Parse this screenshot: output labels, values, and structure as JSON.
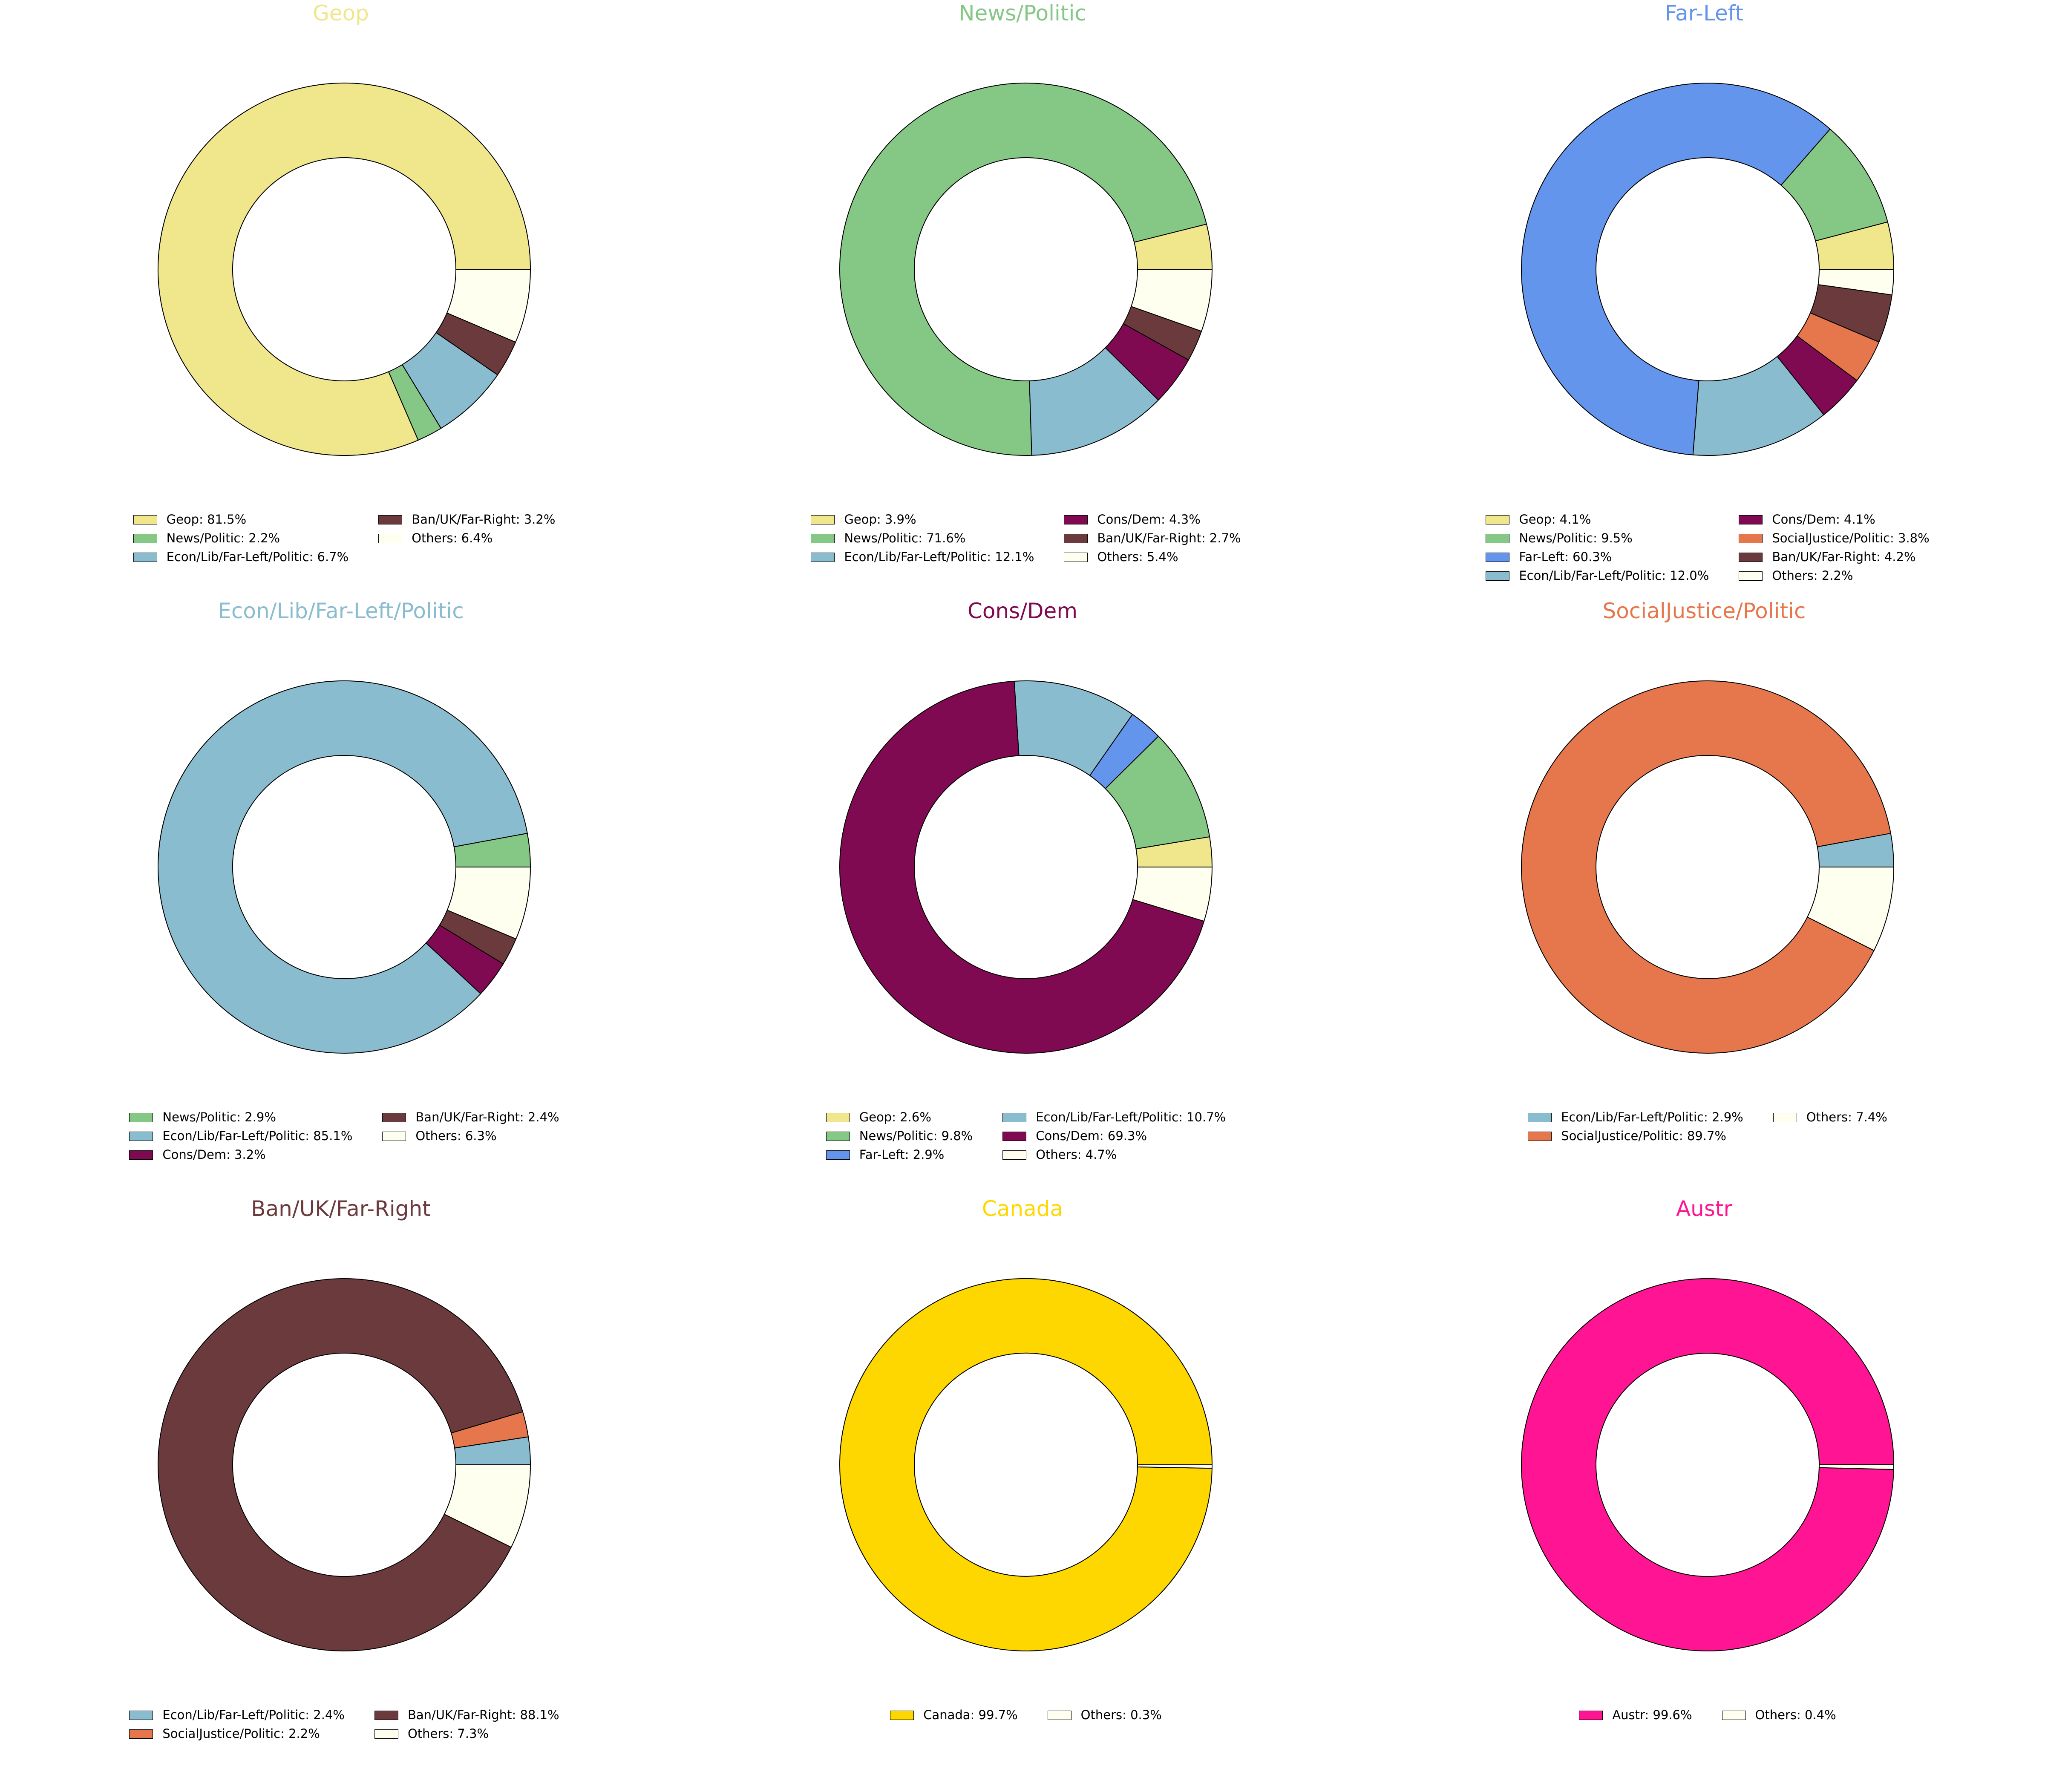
{
  "figure": {
    "type": "donut-grid",
    "rows": 3,
    "cols": 3,
    "legend_placement": "below each chart",
    "edge_color": "#000000"
  },
  "chart_data": [
    {
      "type": "pie",
      "style": "donut",
      "title": "Geop",
      "title_color": "#F0E68C",
      "slices": [
        {
          "label": "Geop: 81.5%",
          "value": 81.5,
          "color": "#F0E68C"
        },
        {
          "label": "News/Politic: 2.2%",
          "value": 2.2,
          "color": "#85C785"
        },
        {
          "label": "Econ/Lib/Far-Left/Politic: 6.7%",
          "value": 6.7,
          "color": "#8ABCCF"
        },
        {
          "label": "Ban/UK/Far-Right: 3.2%",
          "value": 3.2,
          "color": "#6B3A3D"
        },
        {
          "label": "Others: 6.4%",
          "value": 6.4,
          "color": "#FFFFF0"
        }
      ]
    },
    {
      "type": "pie",
      "style": "donut",
      "title": "News/Politic",
      "title_color": "#85C785",
      "slices": [
        {
          "label": "Geop: 3.9%",
          "value": 3.9,
          "color": "#F0E68C"
        },
        {
          "label": "News/Politic: 71.6%",
          "value": 71.6,
          "color": "#85C785"
        },
        {
          "label": "Econ/Lib/Far-Left/Politic: 12.1%",
          "value": 12.1,
          "color": "#8ABCCF"
        },
        {
          "label": "Cons/Dem: 4.3%",
          "value": 4.3,
          "color": "#800A52"
        },
        {
          "label": "Ban/UK/Far-Right: 2.7%",
          "value": 2.7,
          "color": "#6B3A3D"
        },
        {
          "label": "Others: 5.4%",
          "value": 5.4,
          "color": "#FFFFF0"
        }
      ]
    },
    {
      "type": "pie",
      "style": "donut",
      "title": "Far-Left",
      "title_color": "#6495ED",
      "slices": [
        {
          "label": "Geop: 4.1%",
          "value": 4.1,
          "color": "#F0E68C"
        },
        {
          "label": "News/Politic: 9.5%",
          "value": 9.5,
          "color": "#85C785"
        },
        {
          "label": "Far-Left: 60.3%",
          "value": 60.3,
          "color": "#6495ED"
        },
        {
          "label": "Econ/Lib/Far-Left/Politic: 12.0%",
          "value": 12.0,
          "color": "#8ABCCF"
        },
        {
          "label": "Cons/Dem: 4.1%",
          "value": 4.1,
          "color": "#800A52"
        },
        {
          "label": "SocialJustice/Politic: 3.8%",
          "value": 3.8,
          "color": "#E6774C"
        },
        {
          "label": "Ban/UK/Far-Right: 4.2%",
          "value": 4.2,
          "color": "#6B3A3D"
        },
        {
          "label": "Others: 2.2%",
          "value": 2.2,
          "color": "#FFFFF0"
        }
      ]
    },
    {
      "type": "pie",
      "style": "donut",
      "title": "Econ/Lib/Far-Left/Politic",
      "title_color": "#8ABCCF",
      "slices": [
        {
          "label": "News/Politic: 2.9%",
          "value": 2.9,
          "color": "#85C785"
        },
        {
          "label": "Econ/Lib/Far-Left/Politic: 85.1%",
          "value": 85.1,
          "color": "#8ABCCF"
        },
        {
          "label": "Cons/Dem: 3.2%",
          "value": 3.2,
          "color": "#800A52"
        },
        {
          "label": "Ban/UK/Far-Right: 2.4%",
          "value": 2.4,
          "color": "#6B3A3D"
        },
        {
          "label": "Others: 6.3%",
          "value": 6.3,
          "color": "#FFFFF0"
        }
      ]
    },
    {
      "type": "pie",
      "style": "donut",
      "title": "Cons/Dem",
      "title_color": "#800A52",
      "slices": [
        {
          "label": "Geop: 2.6%",
          "value": 2.6,
          "color": "#F0E68C"
        },
        {
          "label": "News/Politic: 9.8%",
          "value": 9.8,
          "color": "#85C785"
        },
        {
          "label": "Far-Left: 2.9%",
          "value": 2.9,
          "color": "#6495ED"
        },
        {
          "label": "Econ/Lib/Far-Left/Politic: 10.7%",
          "value": 10.7,
          "color": "#8ABCCF"
        },
        {
          "label": "Cons/Dem: 69.3%",
          "value": 69.3,
          "color": "#800A52"
        },
        {
          "label": "Others: 4.7%",
          "value": 4.7,
          "color": "#FFFFF0"
        }
      ]
    },
    {
      "type": "pie",
      "style": "donut",
      "title": "SocialJustice/Politic",
      "title_color": "#E6774C",
      "slices": [
        {
          "label": "Econ/Lib/Far-Left/Politic: 2.9%",
          "value": 2.9,
          "color": "#8ABCCF"
        },
        {
          "label": "SocialJustice/Politic: 89.7%",
          "value": 89.7,
          "color": "#E6774C"
        },
        {
          "label": "Others: 7.4%",
          "value": 7.4,
          "color": "#FFFFF0"
        }
      ]
    },
    {
      "type": "pie",
      "style": "donut",
      "title": "Ban/UK/Far-Right",
      "title_color": "#6B3A3D",
      "slices": [
        {
          "label": "Econ/Lib/Far-Left/Politic: 2.4%",
          "value": 2.4,
          "color": "#8ABCCF"
        },
        {
          "label": "SocialJustice/Politic: 2.2%",
          "value": 2.2,
          "color": "#E6774C"
        },
        {
          "label": "Ban/UK/Far-Right: 88.1%",
          "value": 88.1,
          "color": "#6B3A3D"
        },
        {
          "label": "Others: 7.3%",
          "value": 7.3,
          "color": "#FFFFF0"
        }
      ]
    },
    {
      "type": "pie",
      "style": "donut",
      "title": "Canada",
      "title_color": "#FFD700",
      "slices": [
        {
          "label": "Canada: 99.7%",
          "value": 99.7,
          "color": "#FFD700"
        },
        {
          "label": "Others: 0.3%",
          "value": 0.3,
          "color": "#FFFFF0"
        }
      ]
    },
    {
      "type": "pie",
      "style": "donut",
      "title": "Austr",
      "title_color": "#FF1493",
      "slices": [
        {
          "label": "Austr: 99.6%",
          "value": 99.6,
          "color": "#FF1493"
        },
        {
          "label": "Others: 0.4%",
          "value": 0.4,
          "color": "#FFFFF0"
        }
      ]
    }
  ]
}
